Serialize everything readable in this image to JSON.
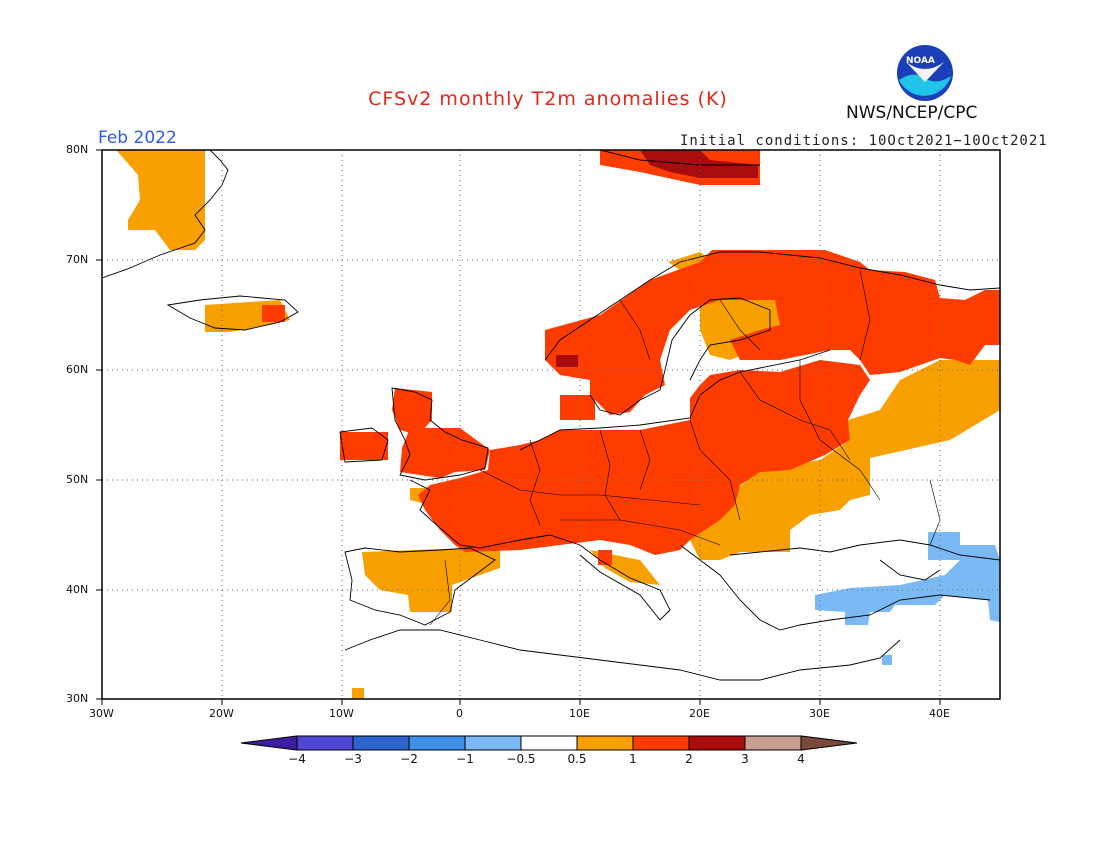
{
  "header": {
    "title": "CFSv2 monthly T2m anomalies (K)",
    "period": "Feb 2022",
    "initial_conditions": "Initial conditions: 10Oct2021−10Oct2021",
    "agency": "NWS/NCEP/CPC",
    "logo_text": "NOAA"
  },
  "map": {
    "lat_labels": [
      "80N",
      "70N",
      "60N",
      "50N",
      "40N",
      "30N"
    ],
    "lon_labels": [
      "30W",
      "20W",
      "10W",
      "0",
      "10E",
      "20E",
      "30E",
      "40E"
    ],
    "lon_range": [
      -30,
      45
    ],
    "lat_range": [
      30,
      80
    ]
  },
  "colorbar": {
    "labels": [
      "−4",
      "−3",
      "−2",
      "−1",
      "−0.5",
      "0.5",
      "1",
      "2",
      "3",
      "4"
    ],
    "colors": [
      "#3a1fa0",
      "#5246d6",
      "#2a64cc",
      "#3d8fe8",
      "#7ab9f3",
      "#ffffff",
      "#f8a000",
      "#ff3c00",
      "#a80c0c",
      "#c89e90",
      "#7b4a3a"
    ]
  }
}
